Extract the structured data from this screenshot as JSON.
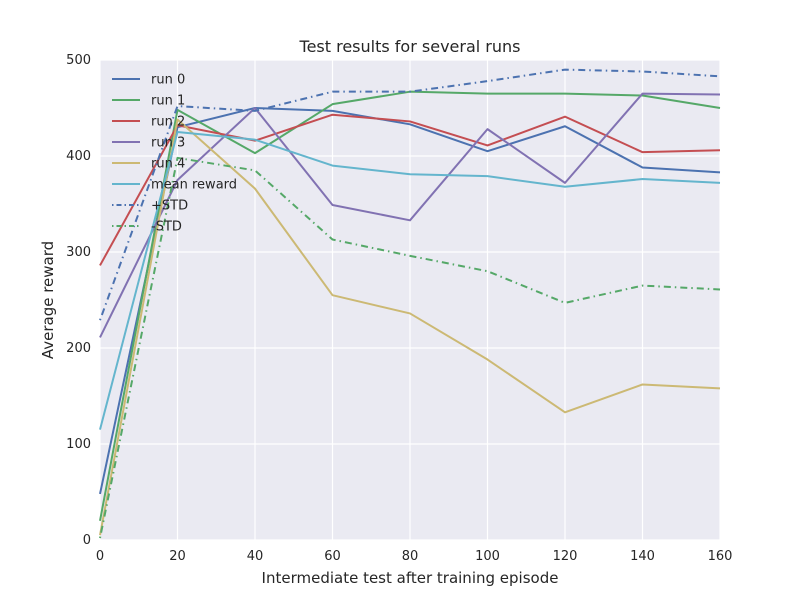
{
  "chart_data": {
    "type": "line",
    "title": "Test results for several runs",
    "xlabel": "Intermediate test after training episode",
    "ylabel": "Average reward",
    "xlim": [
      0,
      160
    ],
    "ylim": [
      0,
      500
    ],
    "xticks": [
      0,
      20,
      40,
      60,
      80,
      100,
      120,
      140,
      160
    ],
    "yticks": [
      0,
      100,
      200,
      300,
      400,
      500
    ],
    "grid": true,
    "legend_position": "upper-left",
    "x": [
      0,
      20,
      40,
      60,
      80,
      100,
      120,
      140,
      160
    ],
    "series": [
      {
        "name": "run 0",
        "color": "#4c72b0",
        "style": "solid",
        "values": [
          48,
          430,
          450,
          447,
          433,
          405,
          431,
          388,
          383
        ]
      },
      {
        "name": "run 1",
        "color": "#55a868",
        "style": "solid",
        "values": [
          20,
          448,
          403,
          454,
          467,
          465,
          465,
          463,
          450
        ]
      },
      {
        "name": "run 2",
        "color": "#c44e52",
        "style": "solid",
        "values": [
          286,
          432,
          416,
          443,
          436,
          411,
          441,
          404,
          406
        ]
      },
      {
        "name": "run 3",
        "color": "#8172b2",
        "style": "solid",
        "values": [
          211,
          375,
          450,
          349,
          333,
          428,
          372,
          465,
          464
        ]
      },
      {
        "name": "run 4",
        "color": "#ccb974",
        "style": "solid",
        "values": [
          5,
          438,
          366,
          255,
          236,
          188,
          133,
          162,
          158
        ]
      },
      {
        "name": "mean reward",
        "color": "#64b5cd",
        "style": "solid",
        "values": [
          115,
          425,
          417,
          390,
          381,
          379,
          368,
          376,
          372
        ]
      },
      {
        "name": "+STD",
        "color": "#4c72b0",
        "style": "dashdot",
        "values": [
          229,
          452,
          447,
          467,
          467,
          478,
          490,
          488,
          483
        ]
      },
      {
        "name": "-STD",
        "color": "#55a868",
        "style": "dashdot",
        "values": [
          2,
          398,
          385,
          313,
          296,
          280,
          247,
          265,
          261
        ]
      }
    ]
  }
}
